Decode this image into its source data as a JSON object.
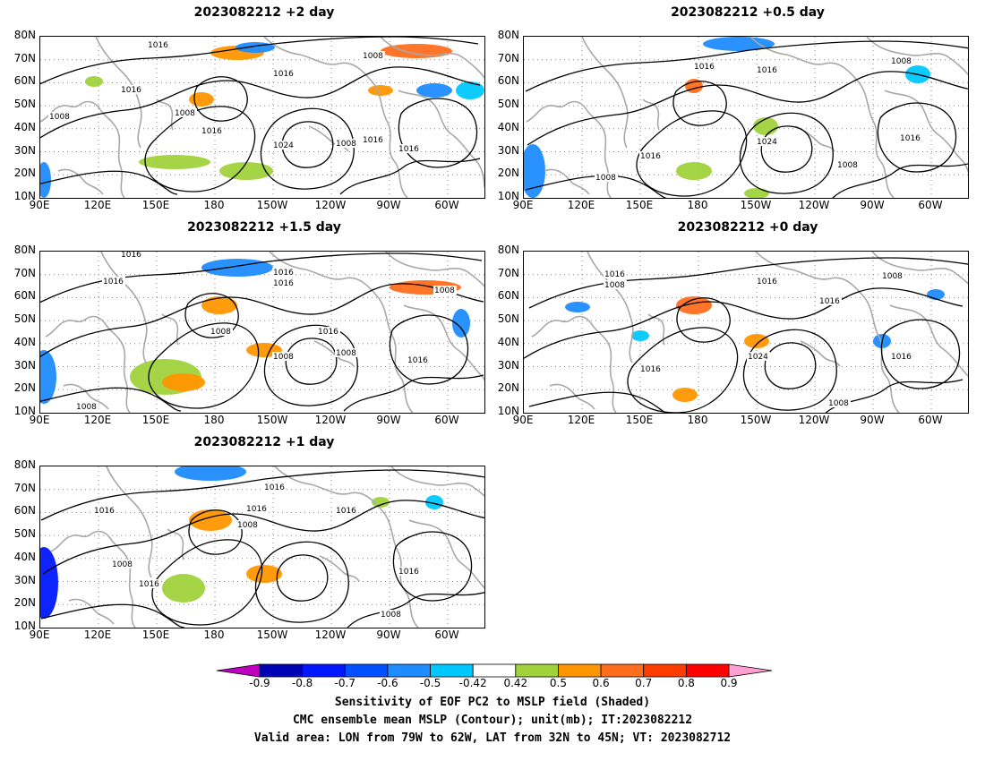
{
  "panels": [
    {
      "id": "p2",
      "title": "2023082212 +2 day",
      "labels": [
        "1016",
        "1016",
        "1016",
        "1008",
        "1008",
        "1016",
        "1008",
        "1024",
        "1008",
        "1016",
        "1016"
      ]
    },
    {
      "id": "p05",
      "title": "2023082212 +0.5 day",
      "labels": [
        "1016",
        "1016",
        "1008",
        "1016",
        "1024",
        "1016",
        "1008",
        "1008"
      ]
    },
    {
      "id": "p15",
      "title": "2023082212 +1.5 day",
      "labels": [
        "1016",
        "1016",
        "1016",
        "1016",
        "1008",
        "1008",
        "1016",
        "1008",
        "1008",
        "1016",
        "1008"
      ]
    },
    {
      "id": "p0",
      "title": "2023082212 +0 day",
      "labels": [
        "1016",
        "1008",
        "1016",
        "1016",
        "1008",
        "1024",
        "1016",
        "1016",
        "1008"
      ]
    },
    {
      "id": "p1",
      "title": "2023082212 +1 day",
      "labels": [
        "1016",
        "1016",
        "1016",
        "1016",
        "1008",
        "1008",
        "1016",
        "1016",
        "1008"
      ]
    }
  ],
  "lat_labels": [
    "80N",
    "70N",
    "60N",
    "50N",
    "40N",
    "30N",
    "20N",
    "10N"
  ],
  "lon_labels": [
    "90E",
    "120E",
    "150E",
    "180",
    "150W",
    "120W",
    "90W",
    "60W"
  ],
  "colorbar": {
    "ticks": [
      "-0.9",
      "-0.8",
      "-0.7",
      "-0.6",
      "-0.5",
      "-0.42",
      "0.42",
      "0.5",
      "0.6",
      "0.7",
      "0.8",
      "0.9"
    ],
    "colors": [
      "#c000c0",
      "#0000b4",
      "#0018ff",
      "#0050ff",
      "#1e8cff",
      "#00c8ff",
      "#ffffff",
      "#a0d23c",
      "#ff9600",
      "#ff6e1e",
      "#ff3c00",
      "#ff0000",
      "#ff9fd2"
    ]
  },
  "captions": [
    "Sensitivity of EOF PC2 to MSLP field (Shaded)",
    "CMC ensemble mean MSLP (Contour); unit(mb); IT:2023082212",
    "Valid area: LON from 79W to 62W, LAT from 32N to 45N; VT: 2023082712"
  ]
}
